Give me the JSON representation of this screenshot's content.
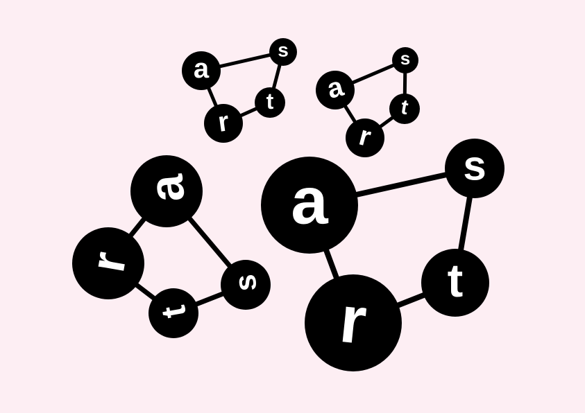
{
  "colors": {
    "background": "#fdeef3",
    "node_fill": "#000000",
    "link_stroke": "#000000",
    "letter_fill": "#ffffff"
  },
  "logos": [
    {
      "name": "logo-small-left",
      "letters": {
        "a": "a",
        "s": "s",
        "r": "r",
        "t": "t"
      }
    },
    {
      "name": "logo-small-right",
      "letters": {
        "a": "a",
        "s": "s",
        "r": "r",
        "t": "t"
      }
    },
    {
      "name": "logo-rotated-left",
      "letters": {
        "a": "a",
        "s": "s",
        "r": "r",
        "t": "t"
      }
    },
    {
      "name": "logo-large-right",
      "letters": {
        "a": "a",
        "s": "s",
        "r": "r",
        "t": "t"
      }
    }
  ]
}
